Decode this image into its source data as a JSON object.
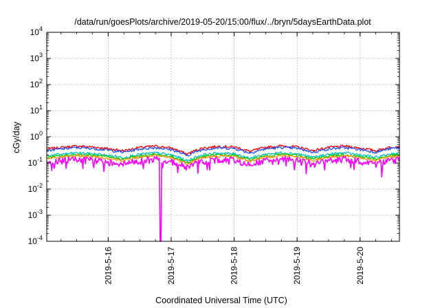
{
  "chart_data": {
    "type": "line",
    "title": "/data/run/goesPlots/archive/2019-05-20/15:00/flux/../bryn/5daysEarthData.plot",
    "xlabel": "Coordinated Universal Time (UTC)",
    "ylabel": "cGy/day",
    "xscale": "time",
    "yscale": "log",
    "xlim": [
      "2019-05-15 00:35",
      "2019-05-20 15:00"
    ],
    "ylim": [
      0.0001,
      10000
    ],
    "x_ticks": [
      "2019-5-16",
      "2019-5-17",
      "2019-5-18",
      "2019-5-19",
      "2019-5-20"
    ],
    "y_ticks": [
      {
        "base": "10",
        "exp": "-4"
      },
      {
        "base": "10",
        "exp": "-3"
      },
      {
        "base": "10",
        "exp": "-2"
      },
      {
        "base": "10",
        "exp": "-1"
      },
      {
        "base": "10",
        "exp": "0"
      },
      {
        "base": "10",
        "exp": "1"
      },
      {
        "base": "10",
        "exp": "2"
      },
      {
        "base": "10",
        "exp": "3"
      },
      {
        "base": "10",
        "exp": "4"
      }
    ],
    "grid": true,
    "legend": "none",
    "series": [
      {
        "color": "#ff0000",
        "level": 0.4,
        "envelope": [
          [
            "2019-05-15 00:35",
            0.35
          ],
          [
            "2019-05-15 06:00",
            0.4
          ],
          [
            "2019-05-15 12:00",
            0.45
          ],
          [
            "2019-05-15 18:00",
            0.42
          ],
          [
            "2019-05-16 00:00",
            0.36
          ],
          [
            "2019-05-16 06:00",
            0.3
          ],
          [
            "2019-05-16 12:00",
            0.4
          ],
          [
            "2019-05-16 18:00",
            0.45
          ],
          [
            "2019-05-17 00:00",
            0.38
          ],
          [
            "2019-05-17 06:00",
            0.22
          ],
          [
            "2019-05-17 12:00",
            0.38
          ],
          [
            "2019-05-17 18:00",
            0.44
          ],
          [
            "2019-05-18 00:00",
            0.42
          ],
          [
            "2019-05-18 06:00",
            0.28
          ],
          [
            "2019-05-18 12:00",
            0.4
          ],
          [
            "2019-05-18 18:00",
            0.46
          ],
          [
            "2019-05-19 00:00",
            0.42
          ],
          [
            "2019-05-19 06:00",
            0.3
          ],
          [
            "2019-05-19 12:00",
            0.4
          ],
          [
            "2019-05-19 18:00",
            0.45
          ],
          [
            "2019-05-20 00:00",
            0.38
          ],
          [
            "2019-05-20 06:00",
            0.3
          ],
          [
            "2019-05-20 12:00",
            0.42
          ],
          [
            "2019-05-20 15:00",
            0.44
          ]
        ]
      },
      {
        "color": "#1f4fff",
        "level": 0.35
      },
      {
        "color": "#00bfbf",
        "level": 0.22
      },
      {
        "color": "#00c800",
        "level": 0.19
      },
      {
        "color": "#ff8c00",
        "level": 0.17
      },
      {
        "color": "#ff00ff",
        "level": 0.13,
        "notable_minimum": [
          "2019-05-16 20:00",
          0.0001
        ]
      }
    ]
  }
}
